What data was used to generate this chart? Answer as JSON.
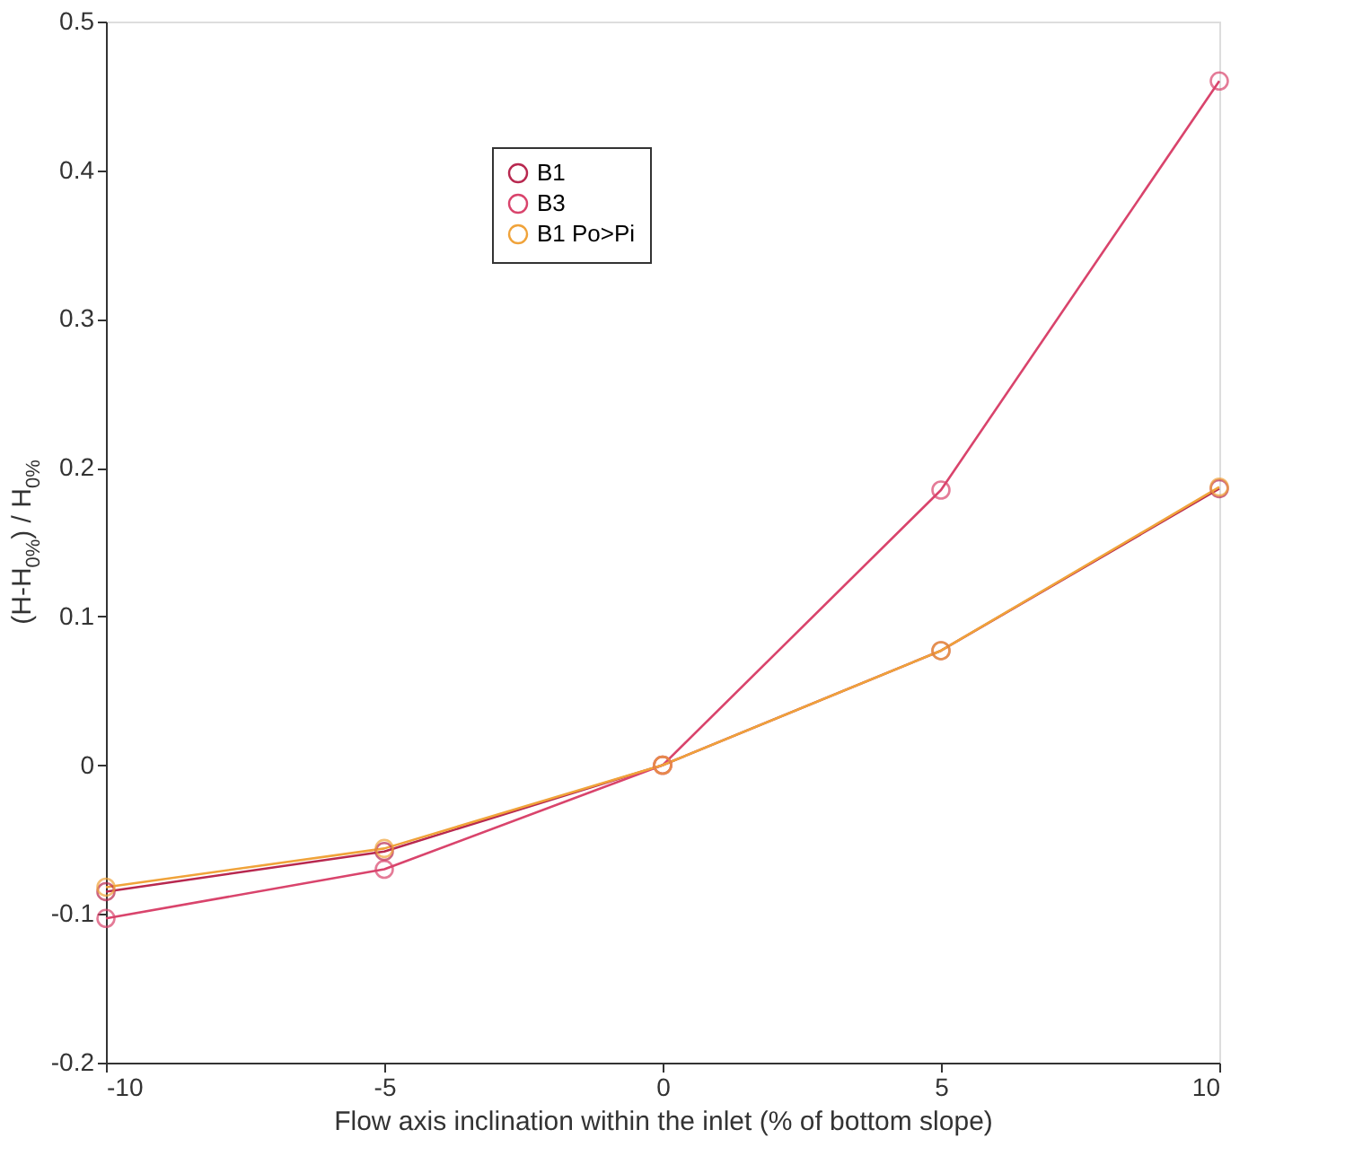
{
  "chart_data": {
    "type": "line",
    "xlabel": "Flow axis inclination within the inlet (% of bottom slope)",
    "ylabel": "(H-H$_{0%}$) / H$_{0%}$",
    "x": [
      -10,
      -5,
      0,
      5,
      10
    ],
    "xlim": [
      -10,
      10
    ],
    "xticks": [
      {
        "value": -10,
        "label": "-10"
      },
      {
        "value": -5,
        "label": "-5"
      },
      0,
      5,
      10
    ],
    "ylim": [
      -0.2,
      0.5
    ],
    "yticks": [
      {
        "value": -0.2,
        "label": "-0.2"
      },
      {
        "value": -0.1,
        "label": "-0.1"
      },
      0,
      {
        "value": 0.1,
        "label": "0.1"
      },
      {
        "value": 0.2,
        "label": "0.2"
      },
      {
        "value": 0.3,
        "label": "0.3"
      },
      {
        "value": 0.4,
        "label": "0.4"
      },
      {
        "value": 0.5,
        "label": "0.5"
      }
    ],
    "grid": false,
    "legend": "top",
    "marker": "circle",
    "line_style": "solid",
    "series": [
      {
        "name": "B1",
        "color": "#b8284f",
        "values": [
          -0.085,
          -0.058,
          0,
          0.077,
          0.186
        ]
      },
      {
        "name": "B3",
        "color": "#d9446c",
        "values": [
          -0.103,
          -0.07,
          0,
          0.185,
          0.46
        ]
      },
      {
        "name": "B1 Po>Pi",
        "color": "#f0a33a",
        "values": [
          -0.082,
          -0.056,
          0,
          0.077,
          0.187
        ]
      }
    ]
  }
}
